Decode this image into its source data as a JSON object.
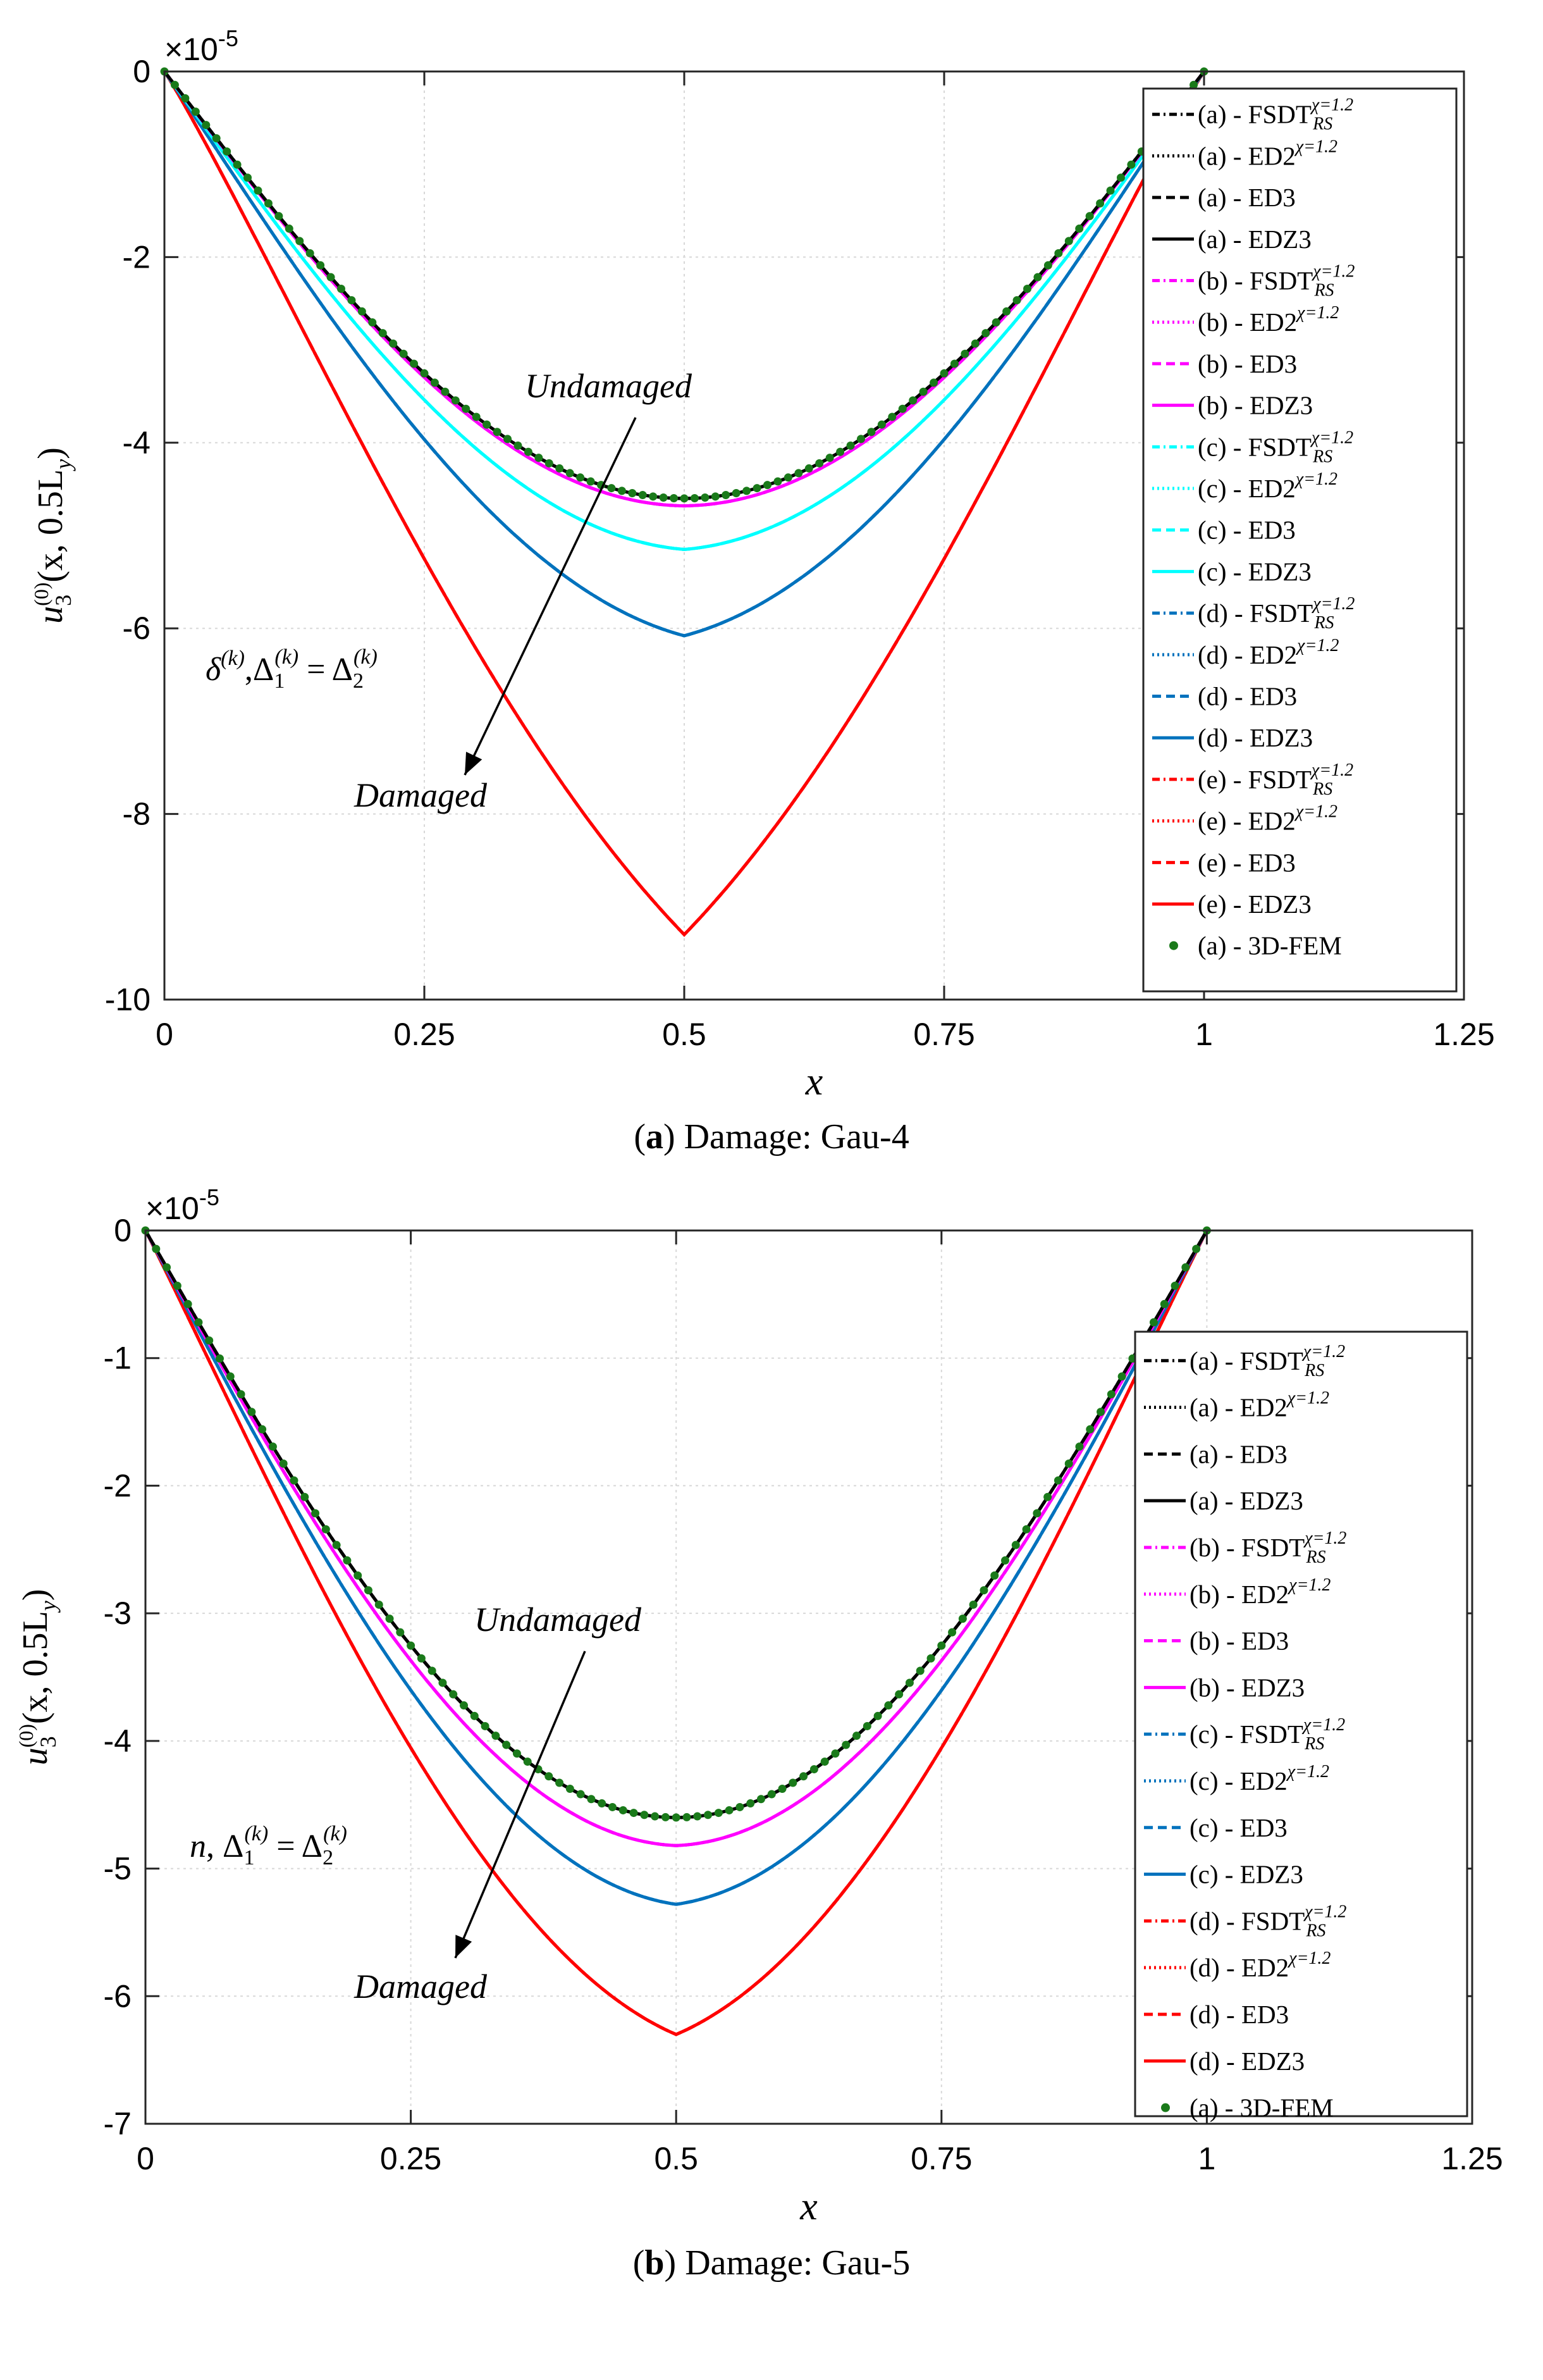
{
  "chart_data": [
    {
      "type": "line",
      "panel_label": "a",
      "caption_label": "a",
      "caption_text": ") Damage: Gau-4",
      "xlabel": "x",
      "ylabel": "u3(0)(x, 0.5Ly)",
      "y_multiplier": "×10",
      "y_multiplier_exp": "-5",
      "xlim": [
        0,
        1.25
      ],
      "ylim": [
        -10,
        0
      ],
      "xticks": [
        0,
        0.25,
        0.5,
        0.75,
        1,
        1.25
      ],
      "xtick_labels": [
        "0",
        "0.25",
        "0.5",
        "0.75",
        "1",
        "1.25"
      ],
      "yticks": [
        0,
        -2,
        -4,
        -6,
        -8,
        -10
      ],
      "ytick_labels": [
        "0",
        "-2",
        "-4",
        "-6",
        "-8",
        "-10"
      ],
      "grid": true,
      "legend_position": "right",
      "series": [
        {
          "name": "(a) - FSDT",
          "sup": "χ=1.2",
          "sub": "RS",
          "color": "#000000",
          "dash": "12 6 3 6",
          "peak": -4.6
        },
        {
          "name": "(a) - ED2",
          "sup": "χ=1.2",
          "sub": "",
          "color": "#000000",
          "dash": "3 5",
          "peak": -4.6
        },
        {
          "name": "(a) - ED3",
          "sup": "",
          "sub": "",
          "color": "#000000",
          "dash": "14 8",
          "peak": -4.6
        },
        {
          "name": "(a) - EDZ3",
          "sup": "",
          "sub": "",
          "color": "#000000",
          "dash": "",
          "peak": -4.6
        },
        {
          "name": "(b) - FSDT",
          "sup": "χ=1.2",
          "sub": "RS",
          "color": "#ff00ff",
          "dash": "12 6 3 6",
          "peak": -4.68
        },
        {
          "name": "(b) - ED2",
          "sup": "χ=1.2",
          "sub": "",
          "color": "#ff00ff",
          "dash": "3 5",
          "peak": -4.68
        },
        {
          "name": "(b) - ED3",
          "sup": "",
          "sub": "",
          "color": "#ff00ff",
          "dash": "14 8",
          "peak": -4.68
        },
        {
          "name": "(b) - EDZ3",
          "sup": "",
          "sub": "",
          "color": "#ff00ff",
          "dash": "",
          "peak": -4.68
        },
        {
          "name": "(c) - FSDT",
          "sup": "χ=1.2",
          "sub": "RS",
          "color": "#00ffff",
          "dash": "12 6 3 6",
          "peak": -5.15
        },
        {
          "name": "(c) - ED2",
          "sup": "χ=1.2",
          "sub": "",
          "color": "#00ffff",
          "dash": "3 5",
          "peak": -5.15
        },
        {
          "name": "(c) - ED3",
          "sup": "",
          "sub": "",
          "color": "#00ffff",
          "dash": "14 8",
          "peak": -5.15
        },
        {
          "name": "(c) - EDZ3",
          "sup": "",
          "sub": "",
          "color": "#00ffff",
          "dash": "",
          "peak": -5.15
        },
        {
          "name": "(d) - FSDT",
          "sup": "χ=1.2",
          "sub": "RS",
          "color": "#0072bd",
          "dash": "12 6 3 6",
          "peak": -6.08
        },
        {
          "name": "(d) - ED2",
          "sup": "χ=1.2",
          "sub": "",
          "color": "#0072bd",
          "dash": "3 5",
          "peak": -6.08
        },
        {
          "name": "(d) - ED3",
          "sup": "",
          "sub": "",
          "color": "#0072bd",
          "dash": "14 8",
          "peak": -6.08
        },
        {
          "name": "(d) - EDZ3",
          "sup": "",
          "sub": "",
          "color": "#0072bd",
          "dash": "",
          "peak": -6.08
        },
        {
          "name": "(e) - FSDT",
          "sup": "χ=1.2",
          "sub": "RS",
          "color": "#ff0000",
          "dash": "12 6 3 6",
          "peak": -9.3
        },
        {
          "name": "(e) - ED2",
          "sup": "χ=1.2",
          "sub": "",
          "color": "#ff0000",
          "dash": "3 5",
          "peak": -9.3
        },
        {
          "name": "(e) - ED3",
          "sup": "",
          "sub": "",
          "color": "#ff0000",
          "dash": "14 8",
          "peak": -9.3
        },
        {
          "name": "(e) - EDZ3",
          "sup": "",
          "sub": "",
          "color": "#ff0000",
          "dash": "",
          "peak": -9.3
        }
      ],
      "fem": {
        "name": "(a) - 3D-FEM",
        "color": "#1a7a1a",
        "peak": -4.6
      },
      "annotations": {
        "top": "Undamaged",
        "bottom": "Damaged",
        "param": "δ(k), Δ1(k) = Δ2(k)"
      }
    },
    {
      "type": "line",
      "panel_label": "b",
      "caption_label": "b",
      "caption_text": ") Damage: Gau-5",
      "xlabel": "x",
      "ylabel": "u3(0)(x, 0.5Ly)",
      "y_multiplier": "×10",
      "y_multiplier_exp": "-5",
      "xlim": [
        0,
        1.25
      ],
      "ylim": [
        -7,
        0
      ],
      "xticks": [
        0,
        0.25,
        0.5,
        0.75,
        1,
        1.25
      ],
      "xtick_labels": [
        "0",
        "0.25",
        "0.5",
        "0.75",
        "1",
        "1.25"
      ],
      "yticks": [
        0,
        -1,
        -2,
        -3,
        -4,
        -5,
        -6,
        -7
      ],
      "ytick_labels": [
        "0",
        "-1",
        "-2",
        "-3",
        "-4",
        "-5",
        "-6",
        "-7"
      ],
      "grid": true,
      "legend_position": "right",
      "series": [
        {
          "name": "(a) - FSDT",
          "sup": "χ=1.2",
          "sub": "RS",
          "color": "#000000",
          "dash": "12 6 3 6",
          "peak": -4.6
        },
        {
          "name": "(a) - ED2",
          "sup": "χ=1.2",
          "sub": "",
          "color": "#000000",
          "dash": "3 5",
          "peak": -4.6
        },
        {
          "name": "(a) - ED3",
          "sup": "",
          "sub": "",
          "color": "#000000",
          "dash": "14 8",
          "peak": -4.6
        },
        {
          "name": "(a) - EDZ3",
          "sup": "",
          "sub": "",
          "color": "#000000",
          "dash": "",
          "peak": -4.6
        },
        {
          "name": "(b) - FSDT",
          "sup": "χ=1.2",
          "sub": "RS",
          "color": "#ff00ff",
          "dash": "12 6 3 6",
          "peak": -4.82
        },
        {
          "name": "(b) - ED2",
          "sup": "χ=1.2",
          "sub": "",
          "color": "#ff00ff",
          "dash": "3 5",
          "peak": -4.82
        },
        {
          "name": "(b) - ED3",
          "sup": "",
          "sub": "",
          "color": "#ff00ff",
          "dash": "14 8",
          "peak": -4.82
        },
        {
          "name": "(b) - EDZ3",
          "sup": "",
          "sub": "",
          "color": "#ff00ff",
          "dash": "",
          "peak": -4.82
        },
        {
          "name": "(c) - FSDT",
          "sup": "χ=1.2",
          "sub": "RS",
          "color": "#0072bd",
          "dash": "12 6 3 6",
          "peak": -5.28
        },
        {
          "name": "(c) - ED2",
          "sup": "χ=1.2",
          "sub": "",
          "color": "#0072bd",
          "dash": "3 5",
          "peak": -5.28
        },
        {
          "name": "(c) - ED3",
          "sup": "",
          "sub": "",
          "color": "#0072bd",
          "dash": "14 8",
          "peak": -5.28
        },
        {
          "name": "(c) - EDZ3",
          "sup": "",
          "sub": "",
          "color": "#0072bd",
          "dash": "",
          "peak": -5.28
        },
        {
          "name": "(d) - FSDT",
          "sup": "χ=1.2",
          "sub": "RS",
          "color": "#ff0000",
          "dash": "12 6 3 6",
          "peak": -6.3
        },
        {
          "name": "(d) - ED2",
          "sup": "χ=1.2",
          "sub": "",
          "color": "#ff0000",
          "dash": "3 5",
          "peak": -6.3
        },
        {
          "name": "(d) - ED3",
          "sup": "",
          "sub": "",
          "color": "#ff0000",
          "dash": "14 8",
          "peak": -6.3
        },
        {
          "name": "(d) - EDZ3",
          "sup": "",
          "sub": "",
          "color": "#ff0000",
          "dash": "",
          "peak": -6.3
        }
      ],
      "fem": {
        "name": "(a) - 3D-FEM",
        "color": "#1a7a1a",
        "peak": -4.6
      },
      "annotations": {
        "top": "Undamaged",
        "bottom": "Damaged",
        "param": "n, Δ1(k) = Δ2(k)"
      }
    }
  ]
}
